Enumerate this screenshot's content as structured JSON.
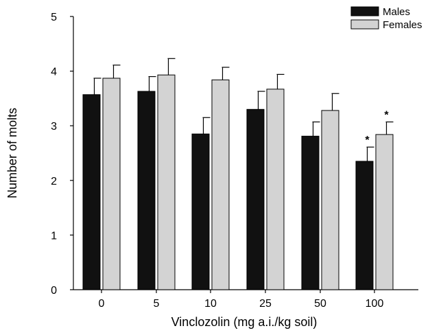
{
  "chart_data": {
    "type": "bar",
    "xlabel": "Vinclozolin (mg a.i./kg soil)",
    "ylabel": "Number of molts",
    "ylim": [
      0,
      5
    ],
    "yticks": [
      "0",
      "1",
      "2",
      "3",
      "4",
      "5"
    ],
    "categories": [
      "0",
      "5",
      "10",
      "25",
      "50",
      "100"
    ],
    "series": [
      {
        "name": "Males",
        "color": "#111111",
        "values": [
          3.57,
          3.63,
          2.85,
          3.3,
          2.81,
          2.35
        ],
        "errors": [
          0.3,
          0.27,
          0.3,
          0.33,
          0.26,
          0.26
        ],
        "significant": [
          false,
          false,
          false,
          false,
          false,
          true
        ]
      },
      {
        "name": "Females",
        "color": "#d3d3d3",
        "values": [
          3.87,
          3.93,
          3.84,
          3.67,
          3.28,
          2.84
        ],
        "errors": [
          0.24,
          0.3,
          0.23,
          0.27,
          0.31,
          0.23
        ],
        "significant": [
          false,
          false,
          false,
          false,
          false,
          true
        ]
      }
    ],
    "significance_marker": "*",
    "legend_position": "top-right",
    "grid": false
  }
}
